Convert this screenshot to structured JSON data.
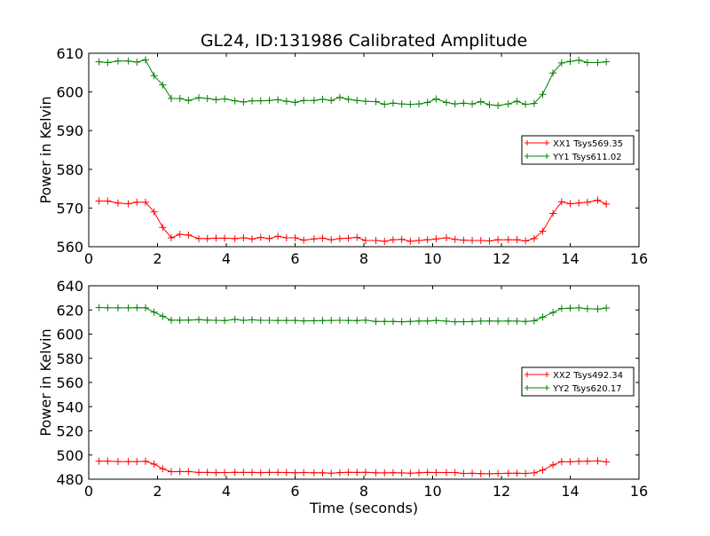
{
  "title": "GL24, ID:131986 Calibrated Amplitude",
  "chart_data": [
    {
      "type": "line",
      "title": "GL24, ID:131986 Calibrated Amplitude",
      "xlabel": "",
      "ylabel": "Power in Kelvin",
      "xlim": [
        0,
        16
      ],
      "ylim": [
        560,
        610
      ],
      "xticks": [
        0,
        2,
        4,
        6,
        8,
        10,
        12,
        14,
        16
      ],
      "yticks": [
        560,
        570,
        580,
        590,
        600,
        610
      ],
      "grid": false,
      "legend_position": "center-right",
      "x": [
        0.3,
        0.55,
        0.85,
        1.15,
        1.4,
        1.65,
        1.9,
        2.15,
        2.4,
        2.65,
        2.9,
        3.2,
        3.45,
        3.7,
        3.95,
        4.25,
        4.5,
        4.75,
        5.0,
        5.25,
        5.5,
        5.75,
        6.0,
        6.25,
        6.55,
        6.8,
        7.05,
        7.3,
        7.55,
        7.8,
        8.05,
        8.35,
        8.6,
        8.85,
        9.1,
        9.35,
        9.6,
        9.85,
        10.1,
        10.4,
        10.65,
        10.9,
        11.15,
        11.4,
        11.65,
        11.9,
        12.2,
        12.45,
        12.7,
        12.95,
        13.2,
        13.5,
        13.75,
        14.0,
        14.25,
        14.5,
        14.8,
        15.05
      ],
      "series": [
        {
          "name": "XX1 Tsys569.35",
          "color": "#ff0000",
          "values": [
            571.8,
            571.8,
            571.3,
            571.1,
            571.5,
            571.5,
            569.0,
            565.0,
            562.3,
            563.2,
            563.0,
            562.1,
            562.1,
            562.2,
            562.2,
            562.1,
            562.3,
            562.0,
            562.4,
            562.1,
            562.7,
            562.3,
            562.3,
            561.7,
            562.0,
            562.2,
            561.8,
            562.1,
            562.2,
            562.4,
            561.6,
            561.6,
            561.4,
            561.8,
            561.9,
            561.4,
            561.6,
            561.8,
            562.0,
            562.3,
            561.9,
            561.7,
            561.6,
            561.6,
            561.5,
            561.8,
            561.8,
            561.8,
            561.5,
            562.1,
            564.0,
            568.6,
            571.6,
            571.1,
            571.3,
            571.5,
            572.0,
            571.0
          ]
        },
        {
          "name": "YY1 Tsys611.02",
          "color": "#008000",
          "values": [
            607.8,
            607.6,
            608.0,
            608.0,
            607.7,
            608.3,
            604.2,
            601.8,
            598.3,
            598.3,
            597.8,
            598.5,
            598.3,
            598.0,
            598.2,
            597.7,
            597.4,
            597.7,
            597.7,
            597.8,
            598.0,
            597.6,
            597.3,
            597.8,
            597.8,
            598.1,
            597.8,
            598.6,
            598.1,
            597.8,
            597.6,
            597.5,
            596.8,
            597.1,
            596.9,
            596.8,
            596.9,
            597.3,
            598.2,
            597.3,
            596.9,
            597.1,
            596.9,
            597.5,
            596.7,
            596.5,
            596.9,
            597.6,
            596.8,
            597.0,
            599.4,
            604.9,
            607.5,
            607.9,
            608.2,
            607.6,
            607.6,
            607.8
          ]
        }
      ]
    },
    {
      "type": "line",
      "title": "",
      "xlabel": "Time (seconds)",
      "ylabel": "Power in Kelvin",
      "xlim": [
        0,
        16
      ],
      "ylim": [
        480,
        640
      ],
      "xticks": [
        0,
        2,
        4,
        6,
        8,
        10,
        12,
        14,
        16
      ],
      "yticks": [
        480,
        500,
        520,
        540,
        560,
        580,
        600,
        620,
        640
      ],
      "grid": false,
      "legend_position": "center-right",
      "x": [
        0.3,
        0.55,
        0.85,
        1.15,
        1.4,
        1.65,
        1.9,
        2.15,
        2.4,
        2.65,
        2.9,
        3.2,
        3.45,
        3.7,
        3.95,
        4.25,
        4.5,
        4.75,
        5.0,
        5.25,
        5.5,
        5.75,
        6.0,
        6.25,
        6.55,
        6.8,
        7.05,
        7.3,
        7.55,
        7.8,
        8.05,
        8.35,
        8.6,
        8.85,
        9.1,
        9.35,
        9.6,
        9.85,
        10.1,
        10.4,
        10.65,
        10.9,
        11.15,
        11.4,
        11.65,
        11.9,
        12.2,
        12.45,
        12.7,
        12.95,
        13.2,
        13.5,
        13.75,
        14.0,
        14.25,
        14.5,
        14.8,
        15.05
      ],
      "series": [
        {
          "name": "XX2 Tsys492.34",
          "color": "#ff0000",
          "values": [
            495.0,
            495.0,
            494.6,
            494.6,
            494.6,
            494.8,
            492.5,
            488.6,
            486.2,
            486.3,
            486.3,
            485.6,
            485.6,
            485.4,
            485.5,
            485.7,
            485.6,
            485.6,
            485.4,
            485.6,
            485.6,
            485.5,
            485.3,
            485.5,
            485.3,
            485.3,
            485.0,
            485.4,
            485.7,
            485.6,
            485.7,
            485.3,
            485.2,
            485.4,
            485.2,
            485.0,
            485.3,
            485.6,
            485.5,
            485.5,
            485.5,
            484.8,
            484.9,
            484.6,
            484.5,
            484.7,
            484.9,
            485.0,
            484.8,
            485.2,
            487.5,
            491.8,
            494.5,
            494.4,
            494.8,
            494.9,
            495.1,
            494.3
          ]
        },
        {
          "name": "YY2 Tsys620.17",
          "color": "#008000",
          "values": [
            622.0,
            621.7,
            621.7,
            621.7,
            621.9,
            621.7,
            618.2,
            614.8,
            611.5,
            611.5,
            611.6,
            612.0,
            611.6,
            611.4,
            611.2,
            612.2,
            611.4,
            611.8,
            611.4,
            611.4,
            611.3,
            611.3,
            611.3,
            610.9,
            611.1,
            611.2,
            611.3,
            611.4,
            611.3,
            611.2,
            611.5,
            610.5,
            610.5,
            610.5,
            610.2,
            610.5,
            610.8,
            610.8,
            611.3,
            610.7,
            610.2,
            610.2,
            610.4,
            610.7,
            610.8,
            610.7,
            610.8,
            610.7,
            610.5,
            611.0,
            614.0,
            617.9,
            621.2,
            621.5,
            621.7,
            621.0,
            620.7,
            621.6
          ]
        }
      ]
    }
  ]
}
